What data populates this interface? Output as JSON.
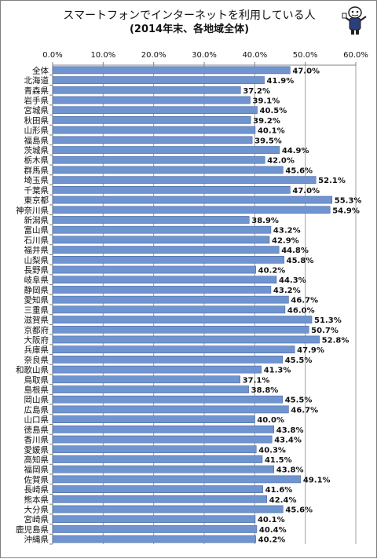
{
  "chart_data": {
    "type": "bar",
    "orientation": "horizontal",
    "title": "スマートフォンでインターネットを利用している人",
    "subtitle": "(2014年末、各地域全体)",
    "categories": [
      "全体",
      "北海道",
      "青森県",
      "岩手県",
      "宮城県",
      "秋田県",
      "山形県",
      "福島県",
      "茨城県",
      "栃木県",
      "群馬県",
      "埼玉県",
      "千葉県",
      "東京都",
      "神奈川県",
      "新潟県",
      "富山県",
      "石川県",
      "福井県",
      "山梨県",
      "長野県",
      "岐阜県",
      "静岡県",
      "愛知県",
      "三重県",
      "滋賀県",
      "京都府",
      "大阪府",
      "兵庫県",
      "奈良県",
      "和歌山県",
      "鳥取県",
      "島根県",
      "岡山県",
      "広島県",
      "山口県",
      "徳島県",
      "香川県",
      "愛媛県",
      "高知県",
      "福岡県",
      "佐賀県",
      "長崎県",
      "熊本県",
      "大分県",
      "宮崎県",
      "鹿児島県",
      "沖縄県"
    ],
    "values": [
      47.0,
      41.9,
      37.2,
      39.1,
      40.5,
      39.2,
      40.1,
      39.5,
      44.9,
      42.0,
      45.6,
      52.1,
      47.0,
      55.3,
      54.9,
      38.9,
      43.2,
      42.9,
      44.8,
      45.8,
      40.2,
      44.3,
      43.2,
      46.7,
      46.0,
      51.3,
      50.7,
      52.8,
      47.9,
      45.5,
      41.3,
      37.1,
      38.8,
      45.5,
      46.7,
      40.0,
      43.8,
      43.4,
      40.3,
      41.5,
      43.8,
      49.1,
      41.6,
      42.4,
      45.6,
      40.1,
      40.4,
      40.2
    ],
    "value_labels": [
      "47.0%",
      "41.9%",
      "37.2%",
      "39.1%",
      "40.5%",
      "39.2%",
      "40.1%",
      "39.5%",
      "44.9%",
      "42.0%",
      "45.6%",
      "52.1%",
      "47.0%",
      "55.3%",
      "54.9%",
      "38.9%",
      "43.2%",
      "42.9%",
      "44.8%",
      "45.8%",
      "40.2%",
      "44.3%",
      "43.2%",
      "46.7%",
      "46.0%",
      "51.3%",
      "50.7%",
      "52.8%",
      "47.9%",
      "45.5%",
      "41.3%",
      "37.1%",
      "38.8%",
      "45.5%",
      "46.7%",
      "40.0%",
      "43.8%",
      "43.4%",
      "40.3%",
      "41.5%",
      "43.8%",
      "49.1%",
      "41.6%",
      "42.4%",
      "45.6%",
      "40.1%",
      "40.4%",
      "40.2%"
    ],
    "xlim": [
      0,
      60
    ],
    "xticks": [
      0,
      10,
      20,
      30,
      40,
      50,
      60
    ],
    "xtick_labels": [
      "0.0%",
      "10.0%",
      "20.0%",
      "30.0%",
      "40.0%",
      "50.0%",
      "60.0%"
    ],
    "axis_position": "top",
    "grid": true,
    "bar_color": "#6f94cf",
    "bar_edge_color": "#3f5f98",
    "grid_color": "#a0a0a0"
  },
  "decorations": {
    "mascot": "cartoon-mascot-icon"
  }
}
